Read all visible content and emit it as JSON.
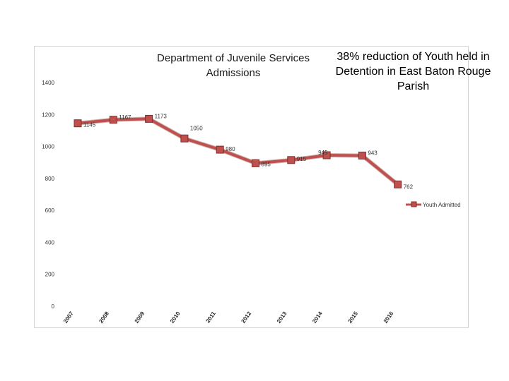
{
  "chart_data": {
    "type": "line",
    "title": "Department of Juvenile Services Admissions",
    "annotation": "38% reduction of Youth held in Detention in East Baton Rouge Parish",
    "categories": [
      "2007",
      "2008",
      "2009",
      "2010",
      "2011",
      "2012",
      "2013",
      "2014",
      "2015",
      "2016"
    ],
    "series": [
      {
        "name": "Youth Admitted",
        "values": [
          1145,
          1167,
          1173,
          1050,
          980,
          895,
          915,
          945,
          943,
          762
        ],
        "data_labels": [
          "1145",
          "1167",
          "1173",
          "1050",
          "980",
          "895",
          "915",
          "945",
          "943",
          "762"
        ]
      }
    ],
    "yticks": [
      "0",
      "200",
      "400",
      "600",
      "800",
      "1000",
      "1200",
      "1400"
    ],
    "ylim": [
      0,
      1400
    ],
    "grid": false,
    "legend": "right",
    "colors": {
      "line": "#c0504d",
      "marker": "#c0504d",
      "marker_edge": "#7f2b28",
      "frame": "#d4d4d4"
    }
  }
}
